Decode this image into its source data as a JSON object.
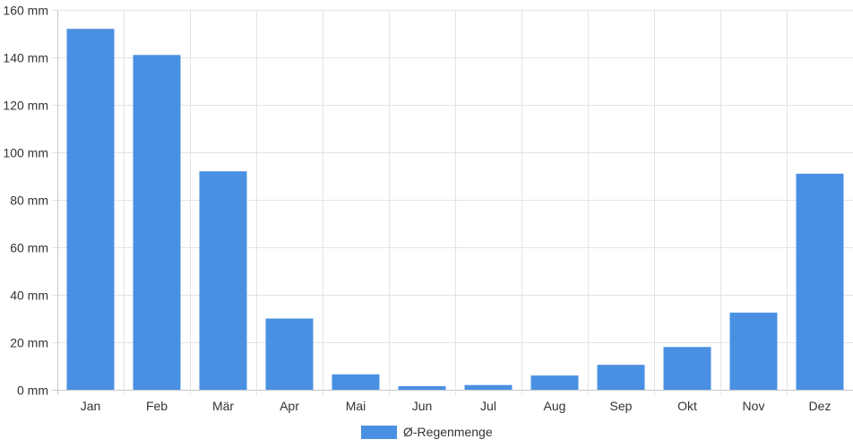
{
  "chart_data": {
    "type": "bar",
    "categories": [
      "Jan",
      "Feb",
      "Mär",
      "Apr",
      "Mai",
      "Jun",
      "Jul",
      "Aug",
      "Sep",
      "Okt",
      "Nov",
      "Dez"
    ],
    "series": [
      {
        "name": "Ø-Regenmenge",
        "values": [
          152,
          141,
          92,
          30,
          6.5,
          1.5,
          2,
          6,
          10.5,
          18,
          32.5,
          91
        ],
        "color": "#4a90e2"
      }
    ],
    "y_unit": "mm",
    "ylim": [
      0,
      160
    ],
    "y_ticks": [
      0,
      20,
      40,
      60,
      80,
      100,
      120,
      140,
      160
    ],
    "grid": true,
    "legend_position": "bottom"
  }
}
